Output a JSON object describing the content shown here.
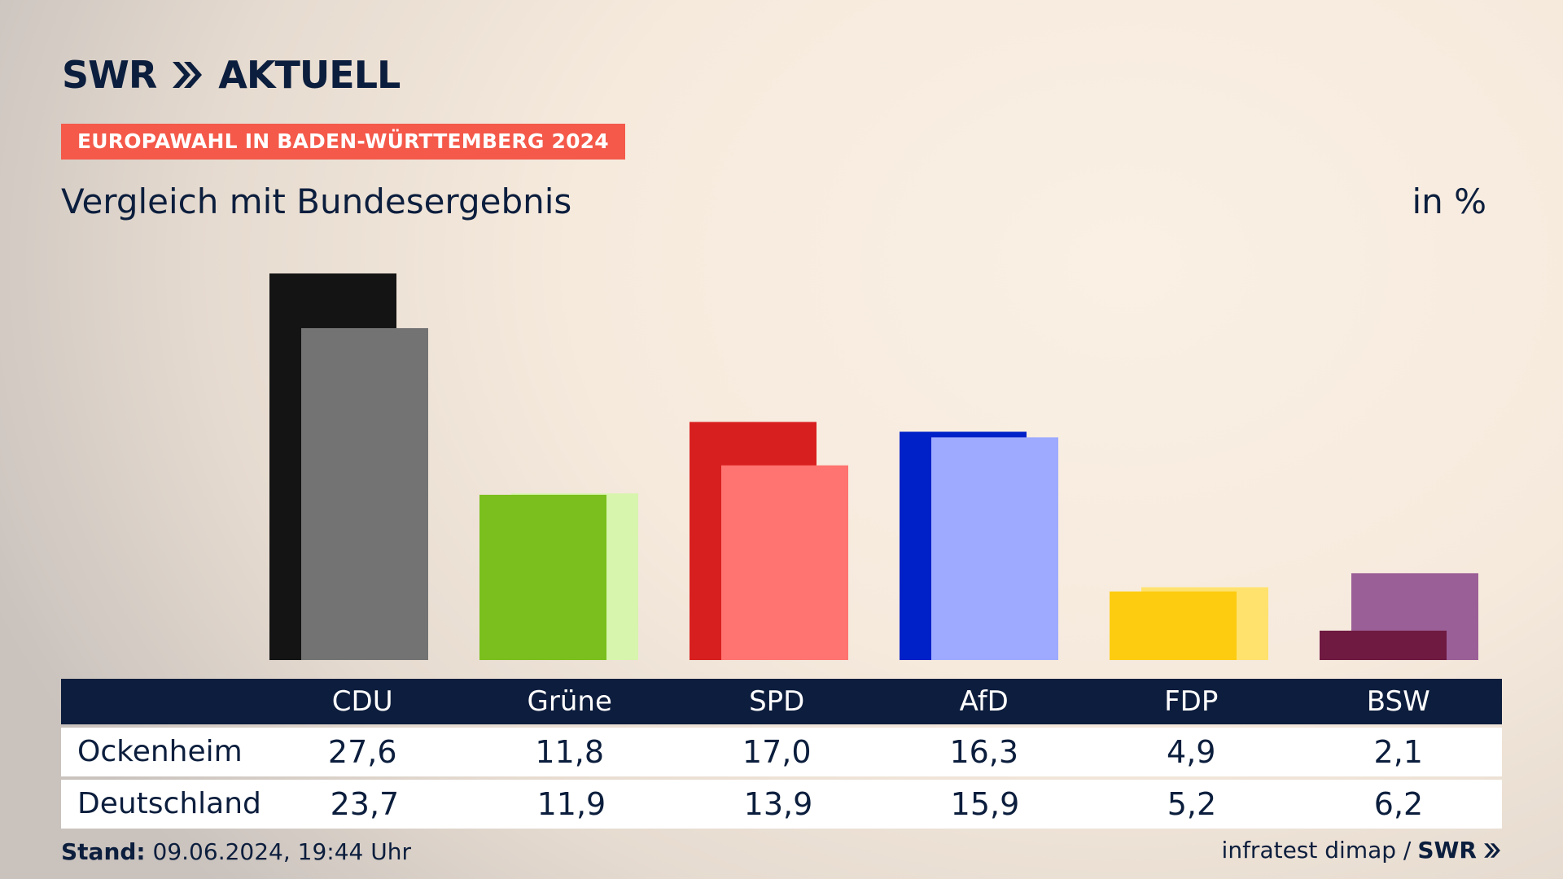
{
  "header": {
    "logo_text": "SWR",
    "logo_suffix": "AKTUELL",
    "badge": "EUROPAWAHL IN BADEN-WÜRTTEMBERG 2024",
    "subtitle": "Vergleich mit Bundesergebnis",
    "unit": "in %"
  },
  "chart_data": {
    "type": "bar",
    "categories": [
      "CDU",
      "Grüne",
      "SPD",
      "AfD",
      "FDP",
      "BSW"
    ],
    "series": [
      {
        "name": "Ockenheim",
        "values": [
          27.6,
          11.8,
          17.0,
          16.3,
          4.9,
          2.1
        ]
      },
      {
        "name": "Deutschland",
        "values": [
          23.7,
          11.9,
          13.9,
          15.9,
          5.2,
          6.2
        ]
      }
    ],
    "colors_primary": [
      "#141414",
      "#7abf1d",
      "#d81f1f",
      "#0020c8",
      "#fdcc10",
      "#6e1a41"
    ],
    "colors_secondary": [
      "#737373",
      "#d7f5ad",
      "#ff7370",
      "#9eaaff",
      "#ffe26e",
      "#9b5f97"
    ],
    "ylim": [
      0,
      27.6
    ],
    "grid": false,
    "legend": "table-below"
  },
  "table": {
    "row_labels": [
      "Ockenheim",
      "Deutschland"
    ],
    "values_display": [
      [
        "27,6",
        "11,8",
        "17,0",
        "16,3",
        "4,9",
        "2,1"
      ],
      [
        "23,7",
        "11,9",
        "13,9",
        "15,9",
        "5,2",
        "6,2"
      ]
    ]
  },
  "footer": {
    "stand_label": "Stand:",
    "stand_value": "09.06.2024, 19:44 Uhr",
    "source": "infratest dimap /",
    "source_logo": "SWR"
  }
}
